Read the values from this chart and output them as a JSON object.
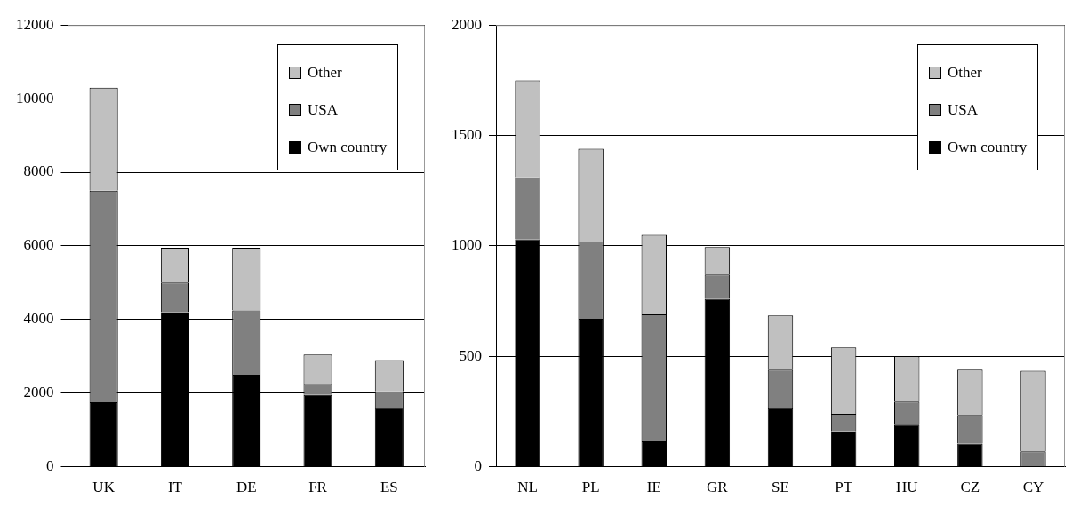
{
  "chart_data": [
    {
      "type": "bar",
      "stacked": true,
      "categories": [
        "UK",
        "IT",
        "DE",
        "FR",
        "ES"
      ],
      "series": [
        {
          "name": "Own country",
          "color": "#000000",
          "values": [
            1750,
            4200,
            2500,
            1950,
            1600
          ]
        },
        {
          "name": "USA",
          "color": "#808080",
          "values": [
            5750,
            800,
            1750,
            300,
            450
          ]
        },
        {
          "name": "Other",
          "color": "#c0c0c0",
          "values": [
            2800,
            950,
            1700,
            800,
            850
          ]
        }
      ],
      "ylim": [
        0,
        12000
      ],
      "yticks": [
        0,
        2000,
        4000,
        6000,
        8000,
        10000,
        12000
      ],
      "grid": "y",
      "legend": "top right"
    },
    {
      "type": "bar",
      "stacked": true,
      "categories": [
        "NL",
        "PL",
        "IE",
        "GR",
        "SE",
        "PT",
        "HU",
        "CZ",
        "CY"
      ],
      "series": [
        {
          "name": "Own country",
          "color": "#000000",
          "values": [
            1030,
            670,
            115,
            760,
            265,
            160,
            190,
            105,
            0
          ]
        },
        {
          "name": "USA",
          "color": "#808080",
          "values": [
            280,
            350,
            575,
            110,
            175,
            80,
            105,
            130,
            70
          ]
        },
        {
          "name": "Other",
          "color": "#c0c0c0",
          "values": [
            440,
            420,
            360,
            125,
            245,
            300,
            205,
            205,
            365
          ]
        }
      ],
      "ylim": [
        0,
        2000
      ],
      "yticks": [
        0,
        500,
        1000,
        1500,
        2000
      ],
      "grid": "y",
      "legend": "top right"
    }
  ]
}
